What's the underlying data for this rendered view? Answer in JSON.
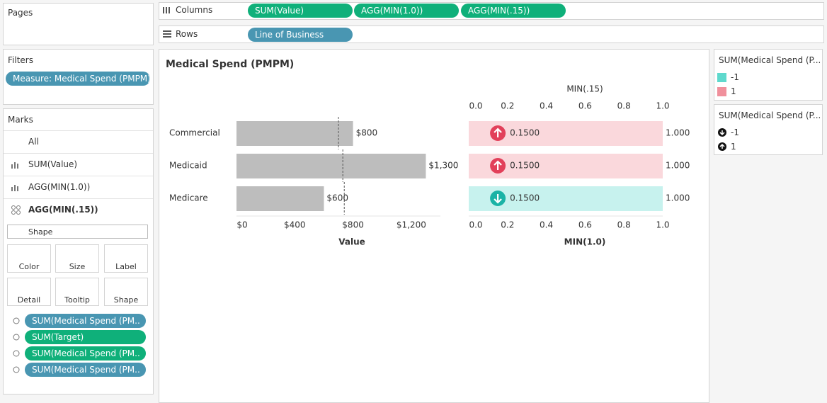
{
  "pages": {
    "title": "Pages"
  },
  "filters": {
    "title": "Filters",
    "pills": [
      "Measure: Medical Spend (PMPM)"
    ]
  },
  "shelves": {
    "columns": {
      "label": "Columns",
      "pills": [
        "SUM(Value)",
        "AGG(MIN(1.0))",
        "AGG(MIN(.15))"
      ]
    },
    "rows": {
      "label": "Rows",
      "pills": [
        "Line of Business"
      ]
    }
  },
  "marks": {
    "title": "Marks",
    "cards": [
      "All",
      "SUM(Value)",
      "AGG(MIN(1.0))",
      "AGG(MIN(.15))"
    ],
    "mark_type": "Shape",
    "buttons": [
      "Color",
      "Size",
      "Label",
      "Detail",
      "Tooltip",
      "Shape"
    ],
    "fields": [
      "SUM(Medical Spend (PM..",
      "SUM(Target)",
      "SUM(Medical Spend (PM..",
      "SUM(Medical Spend (PM.."
    ]
  },
  "legends": [
    {
      "title": "SUM(Medical Spend (P...",
      "items": [
        "-1",
        "1"
      ],
      "colors": [
        "#5fd9cd",
        "#f0909c"
      ]
    },
    {
      "title": "SUM(Medical Spend (P...",
      "items": [
        "-1",
        "1"
      ]
    }
  ],
  "chart_data": [
    {
      "type": "bar",
      "title": "Medical Spend (PMPM)",
      "categories": [
        "Commercial",
        "Medicaid",
        "Medicare"
      ],
      "values": [
        800,
        1300,
        600
      ],
      "value_labels": [
        "$800",
        "$1,300",
        "$600"
      ],
      "targets": [
        700,
        730,
        740
      ],
      "color": "#bdbdbd",
      "xlabel": "Value",
      "xlim": [
        0,
        1400
      ],
      "xticks": [
        {
          "value": 0,
          "label": "$0"
        },
        {
          "value": 400,
          "label": "$400"
        },
        {
          "value": 800,
          "label": "$800"
        },
        {
          "value": 1200,
          "label": "$1,200"
        }
      ]
    },
    {
      "type": "bar",
      "xlabel": "MIN(1.0)",
      "x2label": "MIN(.15)",
      "values": [
        1,
        1,
        1
      ],
      "value_labels": [
        "1.000",
        "1.000",
        "1.000"
      ],
      "shape_values": [
        0.15,
        0.15,
        0.15
      ],
      "shape_labels": [
        "0.1500",
        "0.1500",
        "0.1500"
      ],
      "signs": [
        1,
        1,
        -1
      ],
      "shape_colors": [
        "#1ab3a6",
        "#e2405a"
      ],
      "xlim": [
        0,
        1
      ],
      "xticks": [
        {
          "value": 0,
          "label": "0.0"
        },
        0.2,
        0.4,
        0.6,
        0.8,
        {
          "value": 1,
          "label": "1.0"
        }
      ]
    }
  ]
}
